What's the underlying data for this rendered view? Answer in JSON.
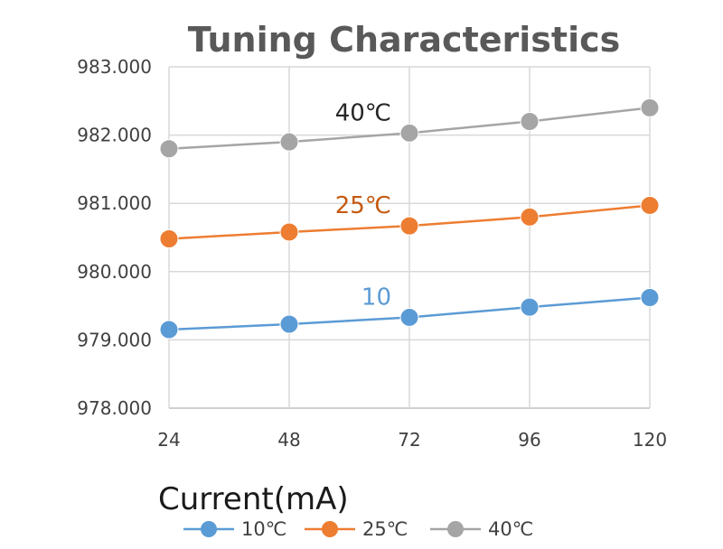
{
  "chart_data": {
    "type": "line",
    "title": "Tuning Characteristics",
    "xlabel": "Current(mA)",
    "ylabel": "",
    "x": [
      24,
      48,
      72,
      96,
      120
    ],
    "x_tick_labels": [
      "24",
      "48",
      "72",
      "96",
      "120"
    ],
    "ylim": [
      978.0,
      983.0
    ],
    "y_tick_labels": [
      "978.000",
      "979.000",
      "980.000",
      "981.000",
      "982.000",
      "983.000"
    ],
    "grid": true,
    "legend_position": "bottom",
    "series": [
      {
        "name": "10℃",
        "color": "#5b9bd5",
        "values": [
          979.15,
          979.23,
          979.33,
          979.48,
          979.62
        ]
      },
      {
        "name": "25℃",
        "color": "#ed7d31",
        "values": [
          980.48,
          980.58,
          980.67,
          980.8,
          980.97
        ]
      },
      {
        "name": "40℃",
        "color": "#a5a5a5",
        "values": [
          981.8,
          981.9,
          982.03,
          982.2,
          982.4
        ]
      }
    ],
    "annotations": [
      {
        "text": "10",
        "series": "10℃",
        "color": "#5b9bd5"
      },
      {
        "text": "25℃",
        "series": "25℃",
        "color": "#c55a11"
      },
      {
        "text": "40℃",
        "series": "40℃",
        "color": "#262626"
      }
    ]
  }
}
